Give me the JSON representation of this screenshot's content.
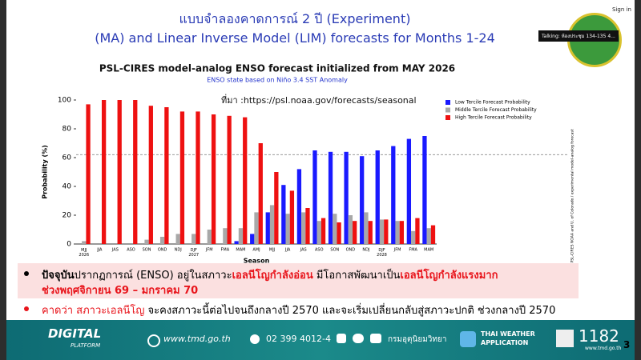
{
  "header": {
    "title": "แบบจำลองคาดการณ์ 2 ปี (Experiment)",
    "subtitle": "(MA) and Linear Inverse Model (LIM) forecasts for Months 1-24"
  },
  "window": {
    "sign_in": "Sign in",
    "talking": "Talking: ห้องประชุม 134-135 4..."
  },
  "chart_data": {
    "type": "bar",
    "title": "PSL-CIRES model-analog ENSO forecast initialized from MAY 2026",
    "subtitle": "ENSO state based on Niño 3.4 SST Anomaly",
    "source": "ที่มา :https://psl.noaa.gov/forecasts/seasonal",
    "side_note": "PSL-CIRES NOAA and U. of Colorado / experimental model-analog forecast",
    "x_label": "Season",
    "y_label": "Probability (%)",
    "categories": [
      "MJJ 2026",
      "JJA",
      "JAS",
      "ASO",
      "SON",
      "OND",
      "NDJ",
      "DJF 2027",
      "JFM",
      "FMA",
      "MAM",
      "AMJ",
      "MJJ",
      "JJA",
      "JAS",
      "ASO",
      "SON",
      "OND",
      "NDJ",
      "DJF 2028",
      "JFM",
      "FMA",
      "MAM"
    ],
    "series": [
      {
        "name": "Low Tercile Forecast Probability",
        "color": "#1a1aff",
        "values": [
          0,
          0,
          0,
          0,
          0,
          0,
          0,
          0,
          0,
          0,
          2,
          7,
          22,
          41,
          52,
          65,
          64,
          64,
          61,
          65,
          68,
          73,
          75
        ]
      },
      {
        "name": "Middle Tercile Forecast Probability",
        "color": "#a8a8a8",
        "values": [
          2,
          0,
          0,
          0,
          3,
          5,
          7,
          7,
          10,
          11,
          11,
          22,
          27,
          21,
          22,
          16,
          21,
          20,
          22,
          17,
          16,
          9,
          11
        ]
      },
      {
        "name": "High Tercile Forecast Probability",
        "color": "#ee1111",
        "values": [
          97,
          100,
          100,
          100,
          96,
          95,
          92,
          92,
          90,
          89,
          88,
          70,
          50,
          37,
          25,
          18,
          15,
          16,
          16,
          17,
          16,
          18,
          13
        ]
      }
    ],
    "reference_line": 62,
    "ylim": [
      0,
      100
    ],
    "yticks": [
      0,
      20,
      40,
      60,
      80,
      100
    ],
    "grid": false,
    "legend": "top-right"
  },
  "bullets": [
    {
      "segments": [
        {
          "text": "ปัจจุบัน",
          "color": "#000000"
        },
        {
          "text": "ปรากฏการณ์ (ENSO) อยู่ในสภาวะ",
          "color": "#000000"
        },
        {
          "text": "เอลนีโญกำลังอ่อน",
          "color": "#e8141b"
        },
        {
          "text": " มีโอกาสพัฒนาเป็น",
          "color": "#000000"
        },
        {
          "text": "เอลนีโญกำลังแรงมาก",
          "color": "#e8141b"
        },
        {
          "text": "ช่วงพฤศจิกายน 69 – มกราคม 70",
          "color": "#e8141b"
        }
      ]
    },
    {
      "segments": [
        {
          "text": "คาดว่า สภาวะเอลนีโญ",
          "color": "#e8141b"
        },
        {
          "text": " จะคงสภาวะนี้ต่อไปจนถึงกลางปี 2570 และจะเริ่มเปลี่ยนกลับสู่สภาวะปกติ ช่วงกลางปี 2570",
          "color": "#000000"
        }
      ]
    }
  ],
  "footer": {
    "brand": "DIGITAL",
    "brand_sub": "PLATFORM",
    "website": "www.tmd.go.th",
    "phone": "02 399 4012-4",
    "dept": "กรมอุตุนิยมวิทยา",
    "app": "THAI WEATHER",
    "app_sub": "APPLICATION",
    "hotline": "1182",
    "hotline_sub": "www.tmd.go.th",
    "page": "3"
  }
}
